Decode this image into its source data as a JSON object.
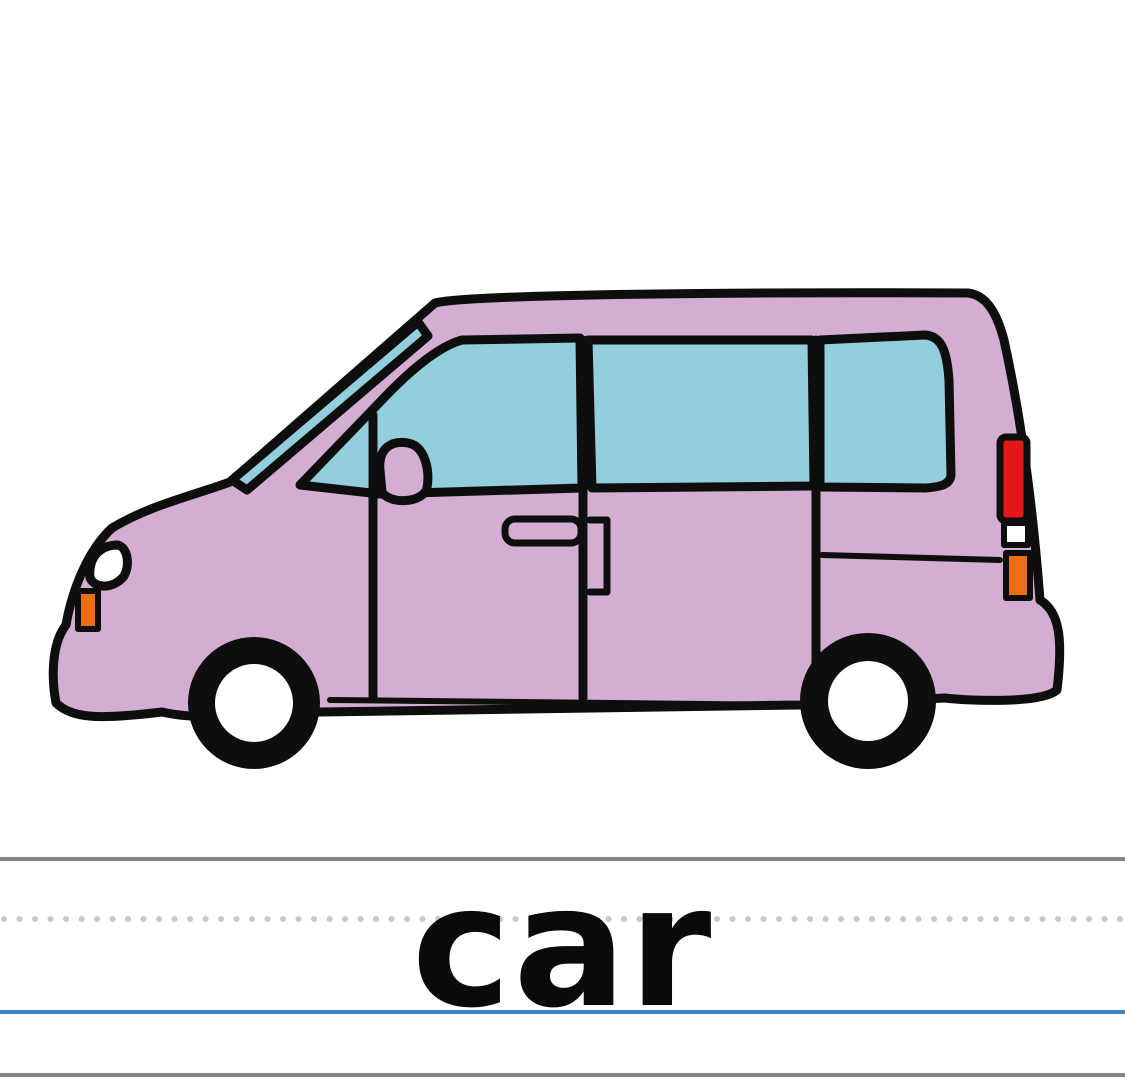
{
  "card": {
    "word": "car"
  },
  "illustration": {
    "subject": "minivan",
    "colors": {
      "body": "#d4aed2",
      "window": "#93cedc",
      "outline": "#0e0e0e",
      "tail_light": "#e01818",
      "indicator": "#ee6e16",
      "wheel_hub": "#ffffff"
    }
  },
  "lines": {
    "colors": {
      "top_line": "#8a8585",
      "dotted_midline": "#c9c9c9",
      "baseline": "#3d86c6",
      "bottom_line": "#8a8585"
    }
  }
}
